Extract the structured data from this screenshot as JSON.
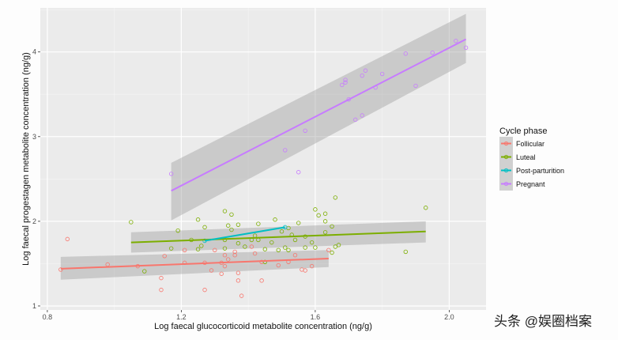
{
  "chart_data": {
    "type": "scatter",
    "title": "",
    "xlabel": "Log faecal glucocorticoid metabolite concentration (ng/g)",
    "ylabel": "Log faecal progestagen metabolite concentration (ng/g)",
    "xlim": [
      0.779,
      2.11
    ],
    "ylim": [
      0.953,
      4.52
    ],
    "xticks": [
      0.8,
      1.2,
      1.6,
      2.0
    ],
    "xtick_labels": [
      "0.8",
      "1.2",
      "1.6",
      "2.0"
    ],
    "yticks": [
      1,
      2,
      3,
      4
    ],
    "ytick_labels": [
      "1",
      "2",
      "3",
      "4"
    ],
    "xminor": [
      1.0,
      1.4,
      1.8
    ],
    "yminor": [
      1.5,
      2.5,
      3.5,
      4.5
    ],
    "grid": true,
    "legend": {
      "title": "Cycle phase",
      "position": "right"
    },
    "series": [
      {
        "name": "Follicular",
        "color": "#F8766D",
        "points": [
          [
            0.84,
            1.43
          ],
          [
            0.86,
            1.79
          ],
          [
            0.98,
            1.49
          ],
          [
            1.07,
            1.47
          ],
          [
            1.14,
            1.33
          ],
          [
            1.14,
            1.19
          ],
          [
            1.15,
            1.59
          ],
          [
            1.21,
            1.66
          ],
          [
            1.21,
            1.51
          ],
          [
            1.27,
            1.19
          ],
          [
            1.27,
            1.51
          ],
          [
            1.29,
            1.42
          ],
          [
            1.3,
            1.66
          ],
          [
            1.32,
            1.38
          ],
          [
            1.32,
            1.51
          ],
          [
            1.33,
            1.6
          ],
          [
            1.33,
            1.47
          ],
          [
            1.34,
            1.55
          ],
          [
            1.36,
            1.64
          ],
          [
            1.36,
            1.6
          ],
          [
            1.37,
            1.39
          ],
          [
            1.37,
            1.3
          ],
          [
            1.38,
            1.12
          ],
          [
            1.41,
            1.7
          ],
          [
            1.42,
            1.62
          ],
          [
            1.44,
            1.3
          ],
          [
            1.44,
            1.52
          ],
          [
            1.49,
            1.48
          ],
          [
            1.52,
            1.52
          ],
          [
            1.54,
            1.6
          ],
          [
            1.56,
            1.43
          ],
          [
            1.57,
            1.42
          ],
          [
            1.59,
            1.47
          ],
          [
            1.64,
            1.66
          ]
        ],
        "fit": [
          [
            0.84,
            1.44
          ],
          [
            1.64,
            1.56
          ]
        ],
        "ci": {
          "x": [
            0.84,
            1.64
          ],
          "lower": [
            1.31,
            1.46
          ],
          "upper": [
            1.58,
            1.66
          ]
        }
      },
      {
        "name": "Luteal",
        "color": "#7CAE00",
        "points": [
          [
            1.05,
            1.99
          ],
          [
            1.09,
            1.41
          ],
          [
            1.17,
            1.68
          ],
          [
            1.19,
            1.89
          ],
          [
            1.23,
            1.78
          ],
          [
            1.25,
            2.02
          ],
          [
            1.25,
            1.67
          ],
          [
            1.26,
            1.71
          ],
          [
            1.27,
            1.93
          ],
          [
            1.33,
            2.12
          ],
          [
            1.33,
            1.78
          ],
          [
            1.33,
            1.68
          ],
          [
            1.34,
            1.95
          ],
          [
            1.35,
            2.08
          ],
          [
            1.35,
            1.9
          ],
          [
            1.37,
            1.96
          ],
          [
            1.37,
            1.74
          ],
          [
            1.39,
            1.7
          ],
          [
            1.41,
            1.78
          ],
          [
            1.42,
            1.83
          ],
          [
            1.43,
            1.97
          ],
          [
            1.43,
            1.78
          ],
          [
            1.45,
            1.67
          ],
          [
            1.45,
            1.52
          ],
          [
            1.47,
            1.75
          ],
          [
            1.48,
            2.02
          ],
          [
            1.49,
            1.66
          ],
          [
            1.5,
            1.88
          ],
          [
            1.51,
            1.69
          ],
          [
            1.52,
            1.92
          ],
          [
            1.52,
            1.66
          ],
          [
            1.53,
            1.84
          ],
          [
            1.54,
            1.78
          ],
          [
            1.55,
            1.98
          ],
          [
            1.57,
            1.69
          ],
          [
            1.57,
            1.82
          ],
          [
            1.59,
            1.75
          ],
          [
            1.6,
            2.14
          ],
          [
            1.61,
            2.07
          ],
          [
            1.63,
            2.09
          ],
          [
            1.63,
            2.0
          ],
          [
            1.66,
            2.28
          ],
          [
            1.65,
            1.94
          ],
          [
            1.63,
            1.87
          ],
          [
            1.6,
            1.69
          ],
          [
            1.66,
            1.7
          ],
          [
            1.67,
            1.72
          ],
          [
            1.65,
            1.63
          ],
          [
            1.93,
            2.16
          ],
          [
            1.87,
            1.64
          ]
        ],
        "fit": [
          [
            1.05,
            1.75
          ],
          [
            1.93,
            1.88
          ]
        ],
        "ci": {
          "x": [
            1.05,
            1.93
          ],
          "lower": [
            1.63,
            1.75
          ],
          "upper": [
            1.87,
            2.0
          ]
        }
      },
      {
        "name": "Post-parturition",
        "color": "#00BFC4",
        "points": [
          [
            1.27,
            1.77
          ],
          [
            1.51,
            1.93
          ]
        ],
        "fit": [
          [
            1.27,
            1.77
          ],
          [
            1.51,
            1.93
          ]
        ]
      },
      {
        "name": "Pregnant",
        "color": "#C77CFF",
        "points": [
          [
            2.02,
            4.13
          ],
          [
            2.05,
            4.05
          ],
          [
            1.87,
            3.98
          ],
          [
            1.95,
            3.99
          ],
          [
            1.75,
            3.78
          ],
          [
            1.74,
            3.72
          ],
          [
            1.69,
            3.67
          ],
          [
            1.69,
            3.64
          ],
          [
            1.68,
            3.61
          ],
          [
            1.8,
            3.74
          ],
          [
            1.78,
            3.58
          ],
          [
            1.9,
            3.6
          ],
          [
            1.7,
            3.44
          ],
          [
            1.74,
            3.25
          ],
          [
            1.72,
            3.2
          ],
          [
            1.57,
            3.07
          ],
          [
            1.51,
            2.84
          ],
          [
            1.55,
            2.58
          ],
          [
            1.17,
            2.56
          ]
        ],
        "fit": [
          [
            1.17,
            2.36
          ],
          [
            2.05,
            4.15
          ]
        ],
        "ci": {
          "x": [
            1.17,
            2.05
          ],
          "lower": [
            2.01,
            3.87
          ],
          "upper": [
            2.69,
            4.45
          ]
        }
      }
    ]
  },
  "watermark": "头条 @娱圈档案"
}
